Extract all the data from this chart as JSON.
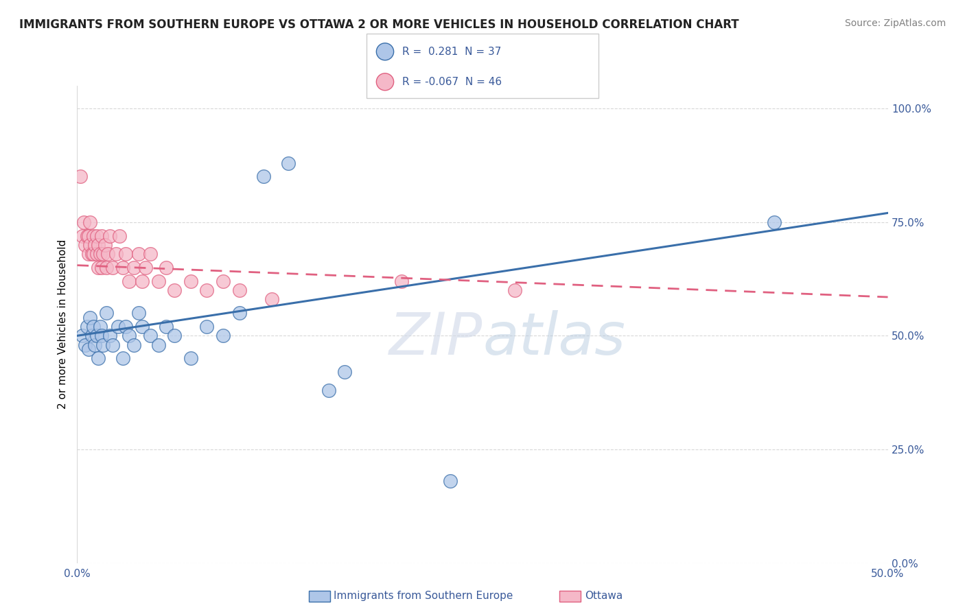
{
  "title": "IMMIGRANTS FROM SOUTHERN EUROPE VS OTTAWA 2 OR MORE VEHICLES IN HOUSEHOLD CORRELATION CHART",
  "source": "Source: ZipAtlas.com",
  "ylabel": "2 or more Vehicles in Household",
  "legend_label1": "Immigrants from Southern Europe",
  "legend_label2": "Ottawa",
  "r1": "0.281",
  "n1": "37",
  "r2": "-0.067",
  "n2": "46",
  "blue_color": "#aec6e8",
  "pink_color": "#f5b8c8",
  "line_blue": "#3a6faa",
  "line_pink": "#e06080",
  "text_color": "#3a5a9a",
  "title_color": "#222222",
  "grid_color": "#d8d8d8",
  "blue_scatter": [
    [
      0.003,
      0.5
    ],
    [
      0.005,
      0.48
    ],
    [
      0.006,
      0.52
    ],
    [
      0.007,
      0.47
    ],
    [
      0.008,
      0.54
    ],
    [
      0.009,
      0.5
    ],
    [
      0.01,
      0.52
    ],
    [
      0.011,
      0.48
    ],
    [
      0.012,
      0.5
    ],
    [
      0.013,
      0.45
    ],
    [
      0.014,
      0.52
    ],
    [
      0.015,
      0.5
    ],
    [
      0.016,
      0.48
    ],
    [
      0.018,
      0.55
    ],
    [
      0.02,
      0.5
    ],
    [
      0.022,
      0.48
    ],
    [
      0.025,
      0.52
    ],
    [
      0.028,
      0.45
    ],
    [
      0.03,
      0.52
    ],
    [
      0.032,
      0.5
    ],
    [
      0.035,
      0.48
    ],
    [
      0.038,
      0.55
    ],
    [
      0.04,
      0.52
    ],
    [
      0.045,
      0.5
    ],
    [
      0.05,
      0.48
    ],
    [
      0.055,
      0.52
    ],
    [
      0.06,
      0.5
    ],
    [
      0.07,
      0.45
    ],
    [
      0.08,
      0.52
    ],
    [
      0.09,
      0.5
    ],
    [
      0.1,
      0.55
    ],
    [
      0.115,
      0.85
    ],
    [
      0.13,
      0.88
    ],
    [
      0.155,
      0.38
    ],
    [
      0.165,
      0.42
    ],
    [
      0.23,
      0.18
    ],
    [
      0.43,
      0.75
    ]
  ],
  "pink_scatter": [
    [
      0.002,
      0.85
    ],
    [
      0.003,
      0.72
    ],
    [
      0.004,
      0.75
    ],
    [
      0.005,
      0.7
    ],
    [
      0.006,
      0.72
    ],
    [
      0.007,
      0.68
    ],
    [
      0.007,
      0.72
    ],
    [
      0.008,
      0.7
    ],
    [
      0.008,
      0.75
    ],
    [
      0.009,
      0.68
    ],
    [
      0.01,
      0.72
    ],
    [
      0.01,
      0.68
    ],
    [
      0.011,
      0.7
    ],
    [
      0.012,
      0.68
    ],
    [
      0.012,
      0.72
    ],
    [
      0.013,
      0.65
    ],
    [
      0.013,
      0.7
    ],
    [
      0.014,
      0.68
    ],
    [
      0.015,
      0.72
    ],
    [
      0.015,
      0.65
    ],
    [
      0.016,
      0.68
    ],
    [
      0.017,
      0.7
    ],
    [
      0.018,
      0.65
    ],
    [
      0.019,
      0.68
    ],
    [
      0.02,
      0.72
    ],
    [
      0.022,
      0.65
    ],
    [
      0.024,
      0.68
    ],
    [
      0.026,
      0.72
    ],
    [
      0.028,
      0.65
    ],
    [
      0.03,
      0.68
    ],
    [
      0.032,
      0.62
    ],
    [
      0.035,
      0.65
    ],
    [
      0.038,
      0.68
    ],
    [
      0.04,
      0.62
    ],
    [
      0.042,
      0.65
    ],
    [
      0.045,
      0.68
    ],
    [
      0.05,
      0.62
    ],
    [
      0.055,
      0.65
    ],
    [
      0.06,
      0.6
    ],
    [
      0.07,
      0.62
    ],
    [
      0.08,
      0.6
    ],
    [
      0.09,
      0.62
    ],
    [
      0.1,
      0.6
    ],
    [
      0.12,
      0.58
    ],
    [
      0.2,
      0.62
    ],
    [
      0.27,
      0.6
    ]
  ],
  "xmin": 0.0,
  "xmax": 0.5,
  "ymin": 0.0,
  "ymax": 1.05,
  "ytick_vals": [
    0.0,
    0.25,
    0.5,
    0.75,
    1.0
  ],
  "ytick_labels": [
    "0.0%",
    "25.0%",
    "50.0%",
    "75.0%",
    "100.0%"
  ],
  "xtick_vals": [
    0.0,
    0.5
  ],
  "xtick_labels": [
    "0.0%",
    "50.0%"
  ]
}
